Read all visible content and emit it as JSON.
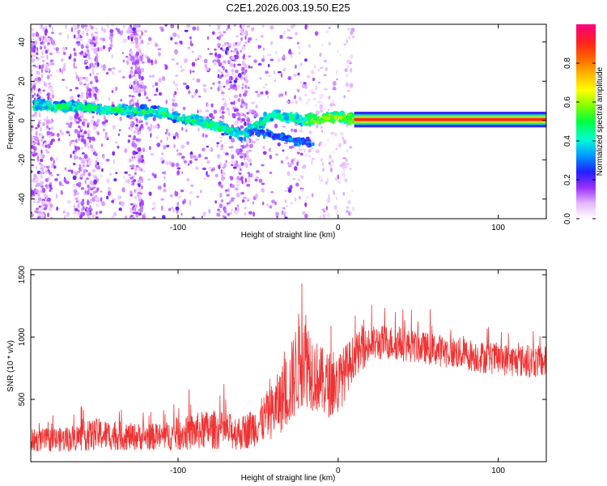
{
  "chart_data": [
    {
      "type": "heatmap",
      "title": "C2E1.2026.003.19.50.E25",
      "xlabel": "Height of straight line (km)",
      "ylabel": "Frequency (Hz)",
      "xlim": [
        -192,
        130
      ],
      "ylim": [
        -50,
        49
      ],
      "xticks": [
        -100,
        0,
        100
      ],
      "xtick_labels": [
        "-100",
        "0",
        "100"
      ],
      "yticks": [
        -40,
        -20,
        0,
        20,
        40
      ],
      "ytick_labels": [
        "-40",
        "-20",
        "0",
        "20",
        "40"
      ],
      "colorbar": {
        "label": "Normalized spectral amplitude",
        "range": [
          0,
          1
        ],
        "ticks": [
          0,
          0.2,
          0.4,
          0.6,
          0.8
        ],
        "tick_labels": [
          "0.0",
          "0.2",
          "0.4",
          "0.6",
          "0.8"
        ]
      },
      "ridge": {
        "description_points_x": [
          -188,
          -150,
          -110,
          -80,
          -60,
          -40,
          -20,
          -10,
          0,
          10,
          130
        ],
        "description_points_y": [
          8,
          6,
          4,
          -2,
          -7,
          3,
          0,
          1,
          2,
          0.5,
          0.5
        ]
      }
    },
    {
      "type": "line",
      "xlabel": "Height of straight line (km)",
      "ylabel": "SNR (10 * v/v)",
      "xlim": [
        -192,
        130
      ],
      "ylim": [
        0,
        1540
      ],
      "xticks": [
        -100,
        0,
        100
      ],
      "xtick_labels": [
        "-100",
        "0",
        "100"
      ],
      "yticks": [
        500,
        1000,
        1500
      ],
      "ytick_labels": [
        "500",
        "1000",
        "1500"
      ],
      "series": [
        {
          "name": "SNR",
          "color": "#f03232",
          "envelope_x": [
            -192,
            -170,
            -150,
            -130,
            -110,
            -90,
            -80,
            -60,
            -50,
            -40,
            -30,
            -22,
            -15,
            -8,
            0,
            10,
            20,
            30,
            50,
            70,
            90,
            110,
            130
          ],
          "envelope_mean": [
            170,
            180,
            220,
            200,
            200,
            240,
            260,
            230,
            300,
            420,
            600,
            900,
            700,
            620,
            620,
            850,
            940,
            960,
            920,
            880,
            840,
            810,
            800
          ],
          "envelope_spread": [
            90,
            100,
            130,
            110,
            110,
            150,
            160,
            140,
            170,
            230,
            320,
            450,
            300,
            270,
            260,
            170,
            150,
            140,
            130,
            130,
            130,
            130,
            130
          ]
        }
      ]
    }
  ]
}
